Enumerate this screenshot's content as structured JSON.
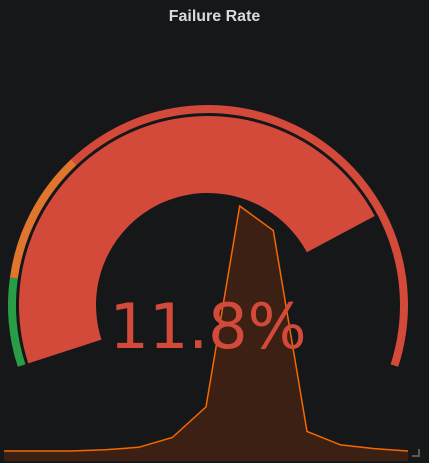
{
  "panel": {
    "title": "Failure Rate",
    "value_text": "11.8%"
  },
  "gauge": {
    "min": 0,
    "max": 15,
    "value": 11.8,
    "unit": "percent",
    "thresholds": [
      {
        "from": 0,
        "to": 1.8,
        "color": "#299c46"
      },
      {
        "from": 1.8,
        "to": 4.5,
        "color": "#e0752d"
      },
      {
        "from": 4.5,
        "to": 15,
        "color": "#d44a3a"
      }
    ],
    "value_color": "#d44a3a"
  },
  "sparkline": {
    "line_color": "#f46800",
    "fill_color": "#3c2014",
    "points": [
      0,
      0,
      0,
      0.1,
      0.3,
      1.1,
      3.6,
      20,
      18,
      1.6,
      0.5,
      0.2,
      0
    ]
  },
  "colors": {
    "background": "#161719",
    "title": "#d8d9da"
  }
}
